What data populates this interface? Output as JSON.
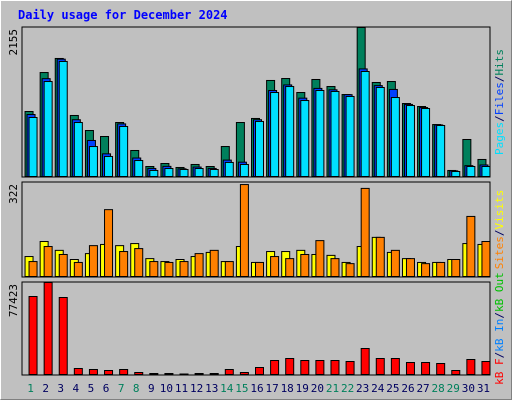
{
  "chart_data": [
    {
      "type": "bar",
      "title": "Daily usage for December 2024",
      "ylim": [
        0,
        2155
      ],
      "yticks": [
        2155
      ],
      "separator": "/",
      "series": [
        {
          "name": "Hits",
          "color": "#00805c",
          "values": [
            948,
            1508,
            1710,
            891,
            675,
            589,
            790,
            388,
            158,
            201,
            144,
            187,
            158,
            445,
            790,
            848,
            1394,
            1422,
            1221,
            1408,
            1307,
            1192,
            2155,
            1365,
            1379,
            1063,
            1020,
            761,
            101,
            546,
            259
          ]
        },
        {
          "name": "Files",
          "color": "#0040ff",
          "values": [
            905,
            1420,
            1700,
            830,
            532,
            340,
            770,
            280,
            130,
            160,
            125,
            150,
            130,
            250,
            220,
            830,
            1250,
            1330,
            1140,
            1280,
            1260,
            1190,
            1560,
            1320,
            1265,
            1050,
            1005,
            755,
            95,
            170,
            180
          ]
        },
        {
          "name": "Pages",
          "color": "#00e0ff",
          "values": [
            862,
            1379,
            1667,
            790,
            445,
            302,
            733,
            244,
            101,
            129,
            115,
            129,
            115,
            216,
            187,
            805,
            1221,
            1307,
            1106,
            1250,
            1236,
            1164,
            1523,
            1293,
            1149,
            1034,
            991,
            747,
            86,
            158,
            158
          ]
        }
      ]
    },
    {
      "type": "bar",
      "ylim": [
        0,
        322
      ],
      "yticks": [
        322
      ],
      "series": [
        {
          "name": "Visits",
          "color": "#ffff00",
          "values": [
            71,
            122,
            92,
            61,
            81,
            112,
            108,
            115,
            64,
            54,
            61,
            71,
            85,
            54,
            105,
            51,
            88,
            88,
            92,
            78,
            75,
            51,
            105,
            136,
            85,
            64,
            51,
            51,
            61,
            115,
            112
          ]
        },
        {
          "name": "Sites",
          "color": "#ff8000",
          "values": [
            54,
            105,
            78,
            51,
            108,
            230,
            88,
            98,
            54,
            51,
            54,
            81,
            92,
            54,
            315,
            51,
            71,
            64,
            78,
            125,
            64,
            47,
            302,
            136,
            92,
            64,
            47,
            51,
            61,
            207,
            122
          ]
        }
      ]
    },
    {
      "type": "bar",
      "ylim": [
        0,
        77423
      ],
      "yticks": [
        77423
      ],
      "categories": [
        1,
        2,
        3,
        4,
        5,
        6,
        7,
        8,
        9,
        10,
        11,
        12,
        13,
        14,
        15,
        16,
        17,
        18,
        19,
        20,
        21,
        22,
        23,
        24,
        25,
        26,
        27,
        28,
        29,
        30,
        31
      ],
      "label_color": "#000060",
      "highlight": [
        1,
        7,
        8,
        14,
        15,
        21,
        22,
        28,
        29
      ],
      "highlight_color": "#00805c",
      "series": [
        {
          "name": "kB Out",
          "color": "#00c000",
          "values": [
            0,
            0,
            0,
            0,
            0,
            0,
            0,
            0,
            0,
            0,
            0,
            0,
            0,
            0,
            0,
            0,
            0,
            0,
            0,
            0,
            0,
            0,
            0,
            0,
            0,
            0,
            0,
            0,
            0,
            0,
            0
          ]
        },
        {
          "name": "kB In",
          "color": "#0080ff",
          "values": [
            0,
            0,
            0,
            0,
            0,
            0,
            0,
            0,
            0,
            0,
            0,
            0,
            0,
            0,
            0,
            0,
            0,
            0,
            0,
            0,
            0,
            0,
            0,
            0,
            0,
            0,
            0,
            0,
            0,
            0,
            0
          ]
        },
        {
          "name": "kB F",
          "color": "#ff0000",
          "values": [
            65765,
            77423,
            64935,
            5828,
            4995,
            4162,
            4995,
            2498,
            1665,
            1665,
            1249,
            1665,
            1665,
            4995,
            2498,
            6660,
            12488,
            14152,
            12488,
            12488,
            12488,
            11655,
            22478,
            14152,
            14152,
            10823,
            10823,
            9990,
            4162,
            13320,
            11655
          ]
        }
      ]
    }
  ]
}
